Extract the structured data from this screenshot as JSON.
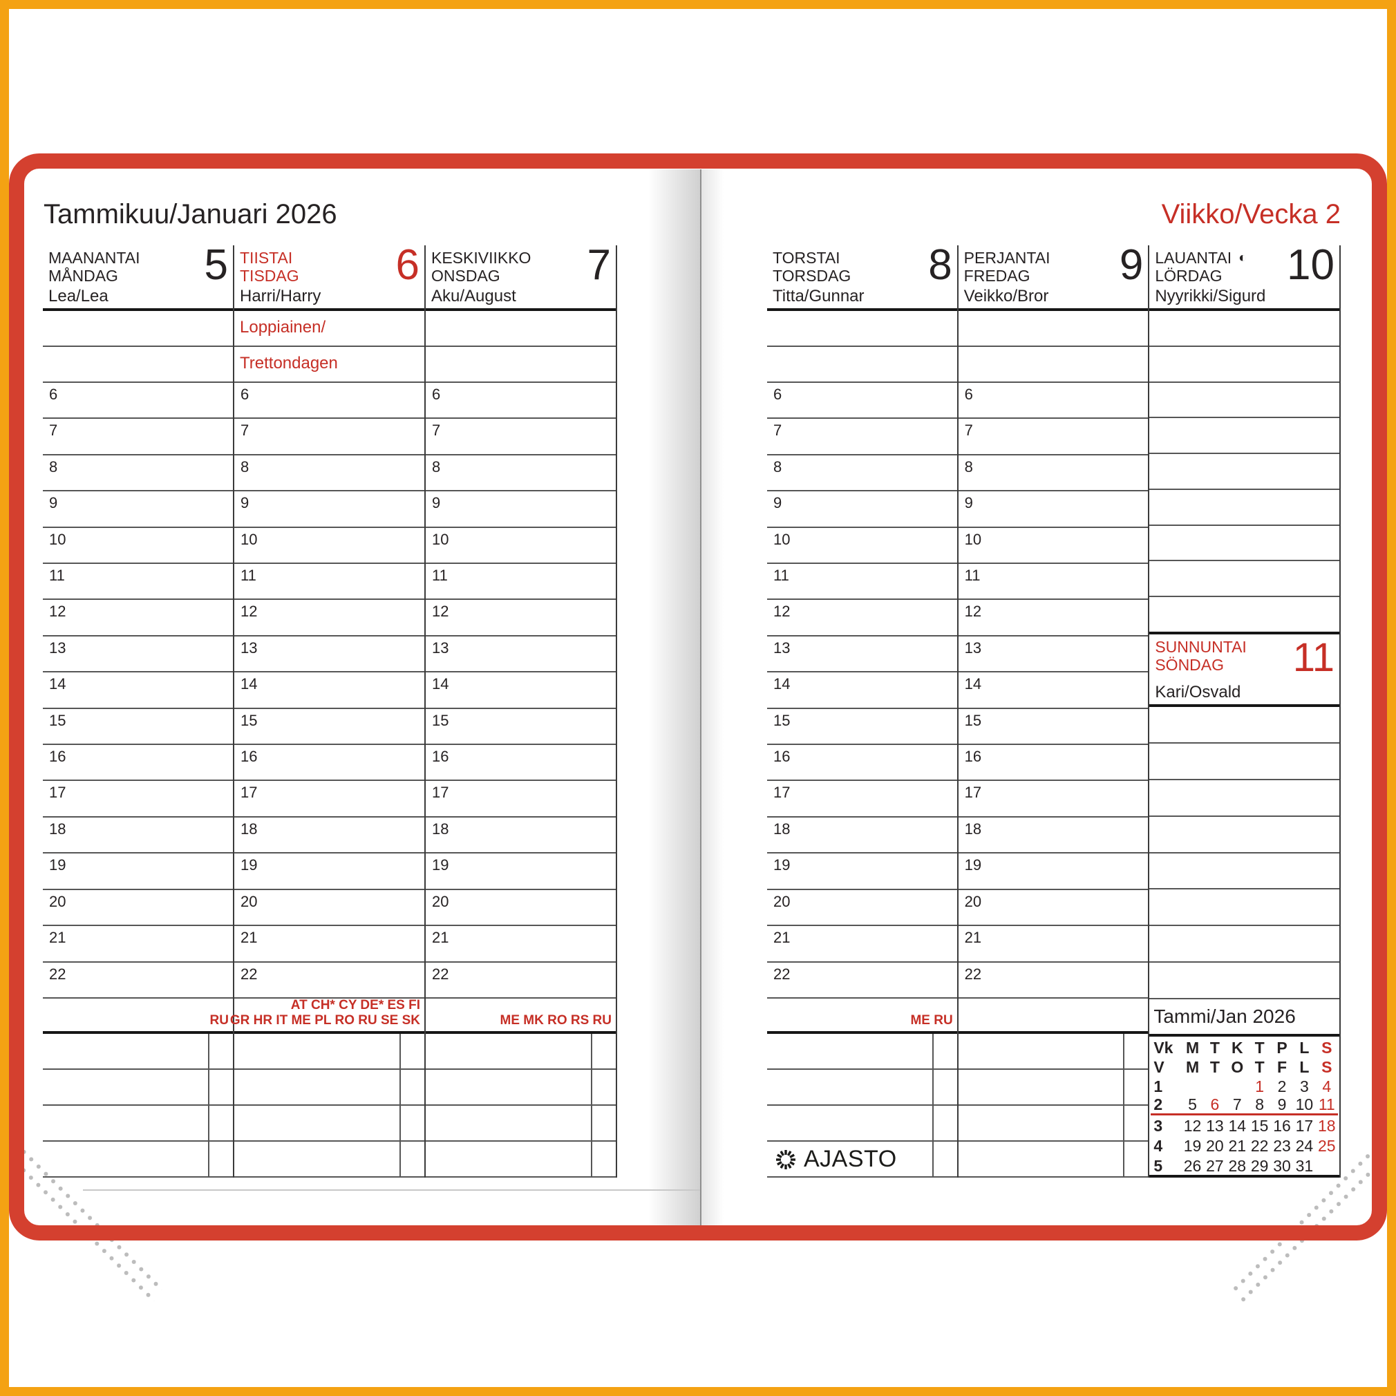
{
  "cover": {
    "border_color": "#d4402f",
    "frame_color": "#f4a213"
  },
  "colors": {
    "accent_red": "#c62f26",
    "text_black": "#262223"
  },
  "pages": [
    {
      "side": "left",
      "title": "Tammikuu/Januari 2026",
      "days": [
        {
          "name_fi": "MAANANTAI",
          "name_sv": "MÅNDAG",
          "number": "5",
          "nameday": "Lea/Lea",
          "red": false,
          "holiday_lines": [
            "",
            ""
          ],
          "abbrev_lines": [
            "RU"
          ]
        },
        {
          "name_fi": "TIISTAI",
          "name_sv": "TISDAG",
          "number": "6",
          "nameday": "Harri/Harry",
          "red": true,
          "holiday_lines": [
            "Loppiainen/",
            "Trettondagen"
          ],
          "abbrev_lines": [
            "AT CH* CY DE* ES FI",
            "GR HR IT ME PL RO RU SE SK"
          ]
        },
        {
          "name_fi": "KESKIVIIKKO",
          "name_sv": "ONSDAG",
          "number": "7",
          "nameday": "Aku/August",
          "red": false,
          "holiday_lines": [
            "",
            ""
          ],
          "abbrev_lines": [
            "ME MK RO RS RU"
          ]
        }
      ]
    },
    {
      "side": "right",
      "title": "Viikko/Vecka 2",
      "days": [
        {
          "name_fi": "TORSTAI",
          "name_sv": "TORSDAG",
          "number": "8",
          "nameday": "Titta/Gunnar",
          "red": false,
          "holiday_lines": [
            "",
            ""
          ],
          "abbrev_lines": [
            "ME RU"
          ],
          "has_logo": true
        },
        {
          "name_fi": "PERJANTAI",
          "name_sv": "FREDAG",
          "number": "9",
          "nameday": "Veikko/Bror",
          "red": false,
          "holiday_lines": [
            "",
            ""
          ],
          "abbrev_lines": []
        },
        {
          "name_fi": "LAUANTAI",
          "name_sv": "LÖRDAG",
          "number": "10",
          "nameday": "Nyyrikki/Sigurd",
          "red": false,
          "moon": "◐",
          "saturday": true
        }
      ]
    }
  ],
  "sunday": {
    "name_fi": "SUNNUNTAI",
    "name_sv": "SÖNDAG",
    "number": "11",
    "nameday": "Kari/Osvald"
  },
  "hours": [
    "6",
    "7",
    "8",
    "9",
    "10",
    "11",
    "12",
    "13",
    "14",
    "15",
    "16",
    "17",
    "18",
    "19",
    "20",
    "21",
    "22"
  ],
  "logo": {
    "text": "AJASTO"
  },
  "mini_calendar": {
    "title": "Tammi/Jan 2026",
    "header_rows": [
      [
        "Vk",
        "M",
        "T",
        "K",
        "T",
        "P",
        "L",
        "S"
      ],
      [
        "V",
        "M",
        "T",
        "O",
        "T",
        "F",
        "L",
        "S"
      ]
    ],
    "weeks": [
      {
        "num": "1",
        "days": [
          "",
          "",
          "",
          "1",
          "2",
          "3",
          "4"
        ],
        "red_days": [
          "1",
          "4"
        ],
        "current": false
      },
      {
        "num": "2",
        "days": [
          "5",
          "6",
          "7",
          "8",
          "9",
          "10",
          "11"
        ],
        "red_days": [
          "6",
          "11"
        ],
        "current": true
      },
      {
        "num": "3",
        "days": [
          "12",
          "13",
          "14",
          "15",
          "16",
          "17",
          "18"
        ],
        "red_days": [
          "18"
        ],
        "current": false
      },
      {
        "num": "4",
        "days": [
          "19",
          "20",
          "21",
          "22",
          "23",
          "24",
          "25"
        ],
        "red_days": [
          "25"
        ],
        "current": false
      },
      {
        "num": "5",
        "days": [
          "26",
          "27",
          "28",
          "29",
          "30",
          "31",
          ""
        ],
        "red_days": [],
        "current": false
      }
    ]
  }
}
